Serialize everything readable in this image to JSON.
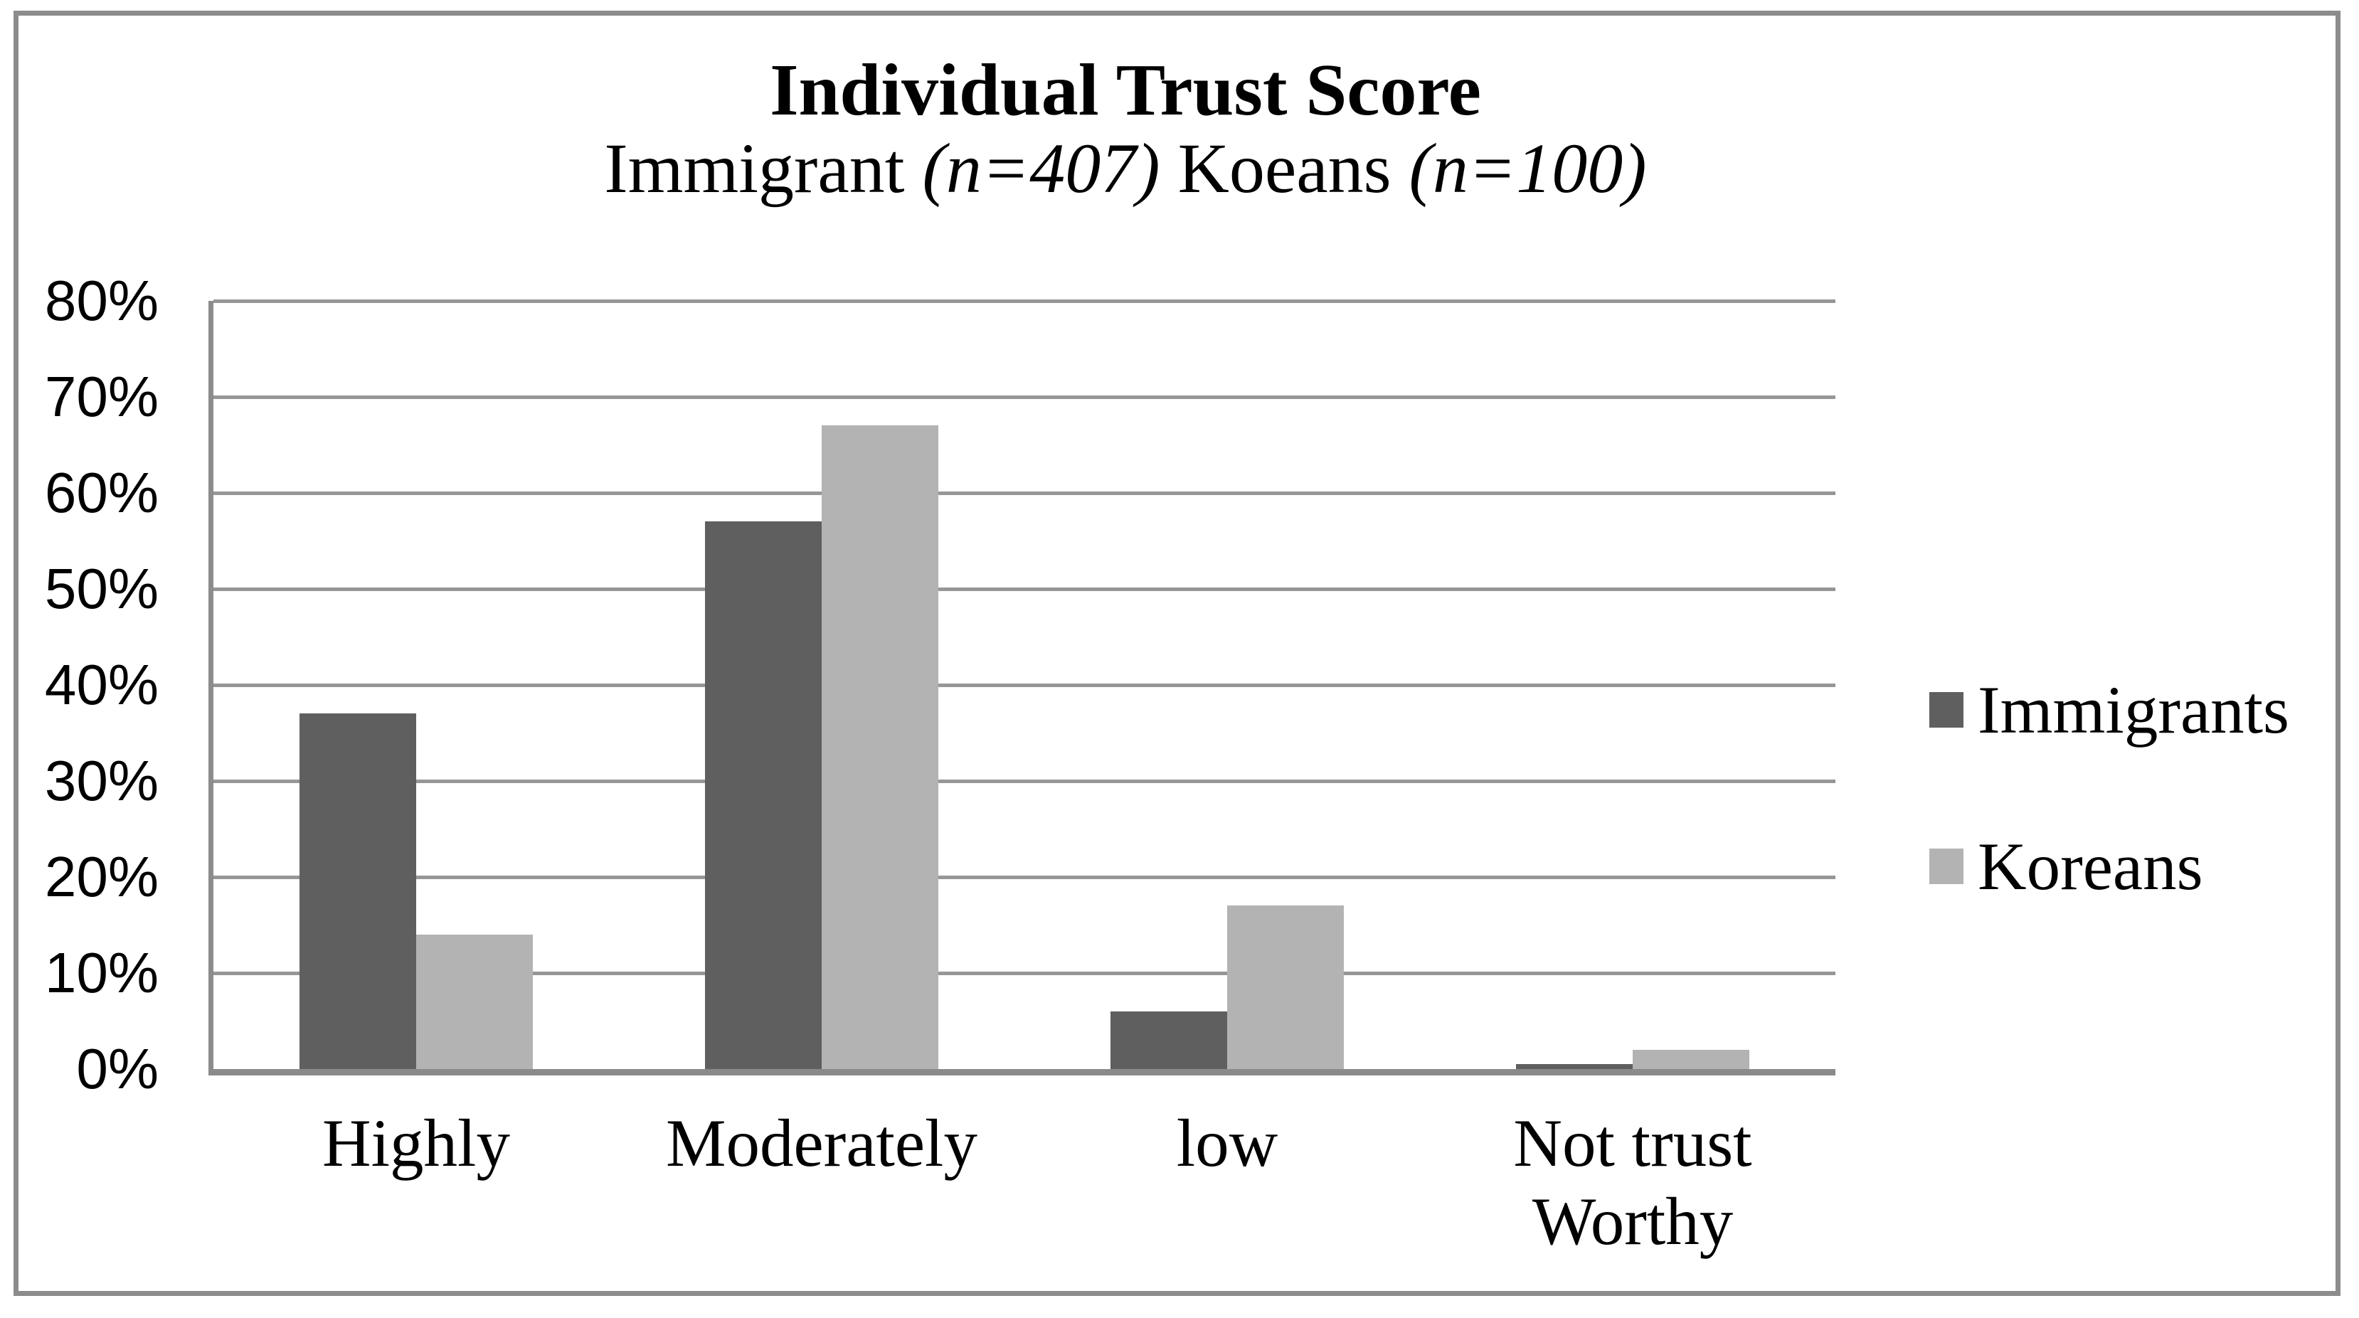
{
  "figure": {
    "title_line1": "Individual Trust Score",
    "title_line2": {
      "prefix": "Immigrant ",
      "n1": "(n=407)",
      "middle": " Koeans ",
      "n2": "(n=100)"
    }
  },
  "chart_data": {
    "type": "bar",
    "title": "Individual Trust Score",
    "subtitle": "Immigrant (n=407) Koeans (n=100)",
    "categories": [
      "Highly",
      "Moderately",
      "low",
      "Not trust\nWorthy"
    ],
    "series": [
      {
        "name": "Immigrants",
        "color": "#5f5f5f",
        "values": [
          37,
          57,
          6,
          0.5
        ]
      },
      {
        "name": "Koreans",
        "color": "#b3b3b3",
        "values": [
          14,
          67,
          17,
          2
        ]
      }
    ],
    "xlabel": "",
    "ylabel": "",
    "ylim": [
      0,
      80
    ],
    "yticks": [
      0,
      10,
      20,
      30,
      40,
      50,
      60,
      70,
      80
    ],
    "ytick_labels": [
      "0%",
      "10%",
      "20%",
      "30%",
      "40%",
      "50%",
      "60%",
      "70%",
      "80%"
    ],
    "grid": true,
    "legend_position": "right"
  },
  "colors": {
    "immigrants_bar": "#5f5f5f",
    "koreans_bar": "#b3b3b3",
    "gridline": "#969696",
    "axis_line": "#8a8a8a",
    "figure_border": "#8c8c8c",
    "text": "#000000",
    "background": "#ffffff"
  }
}
